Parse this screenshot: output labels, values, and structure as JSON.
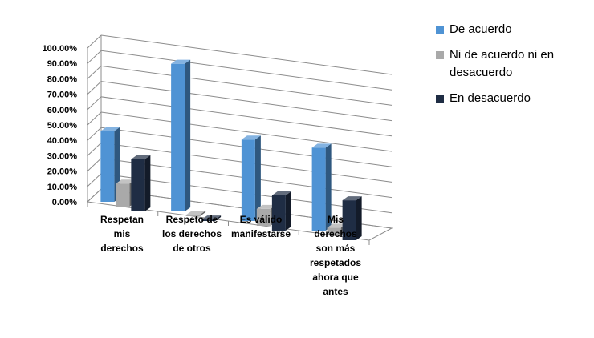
{
  "chart_data": {
    "type": "bar",
    "categories": [
      [
        "Respetan",
        "mis",
        "derechos"
      ],
      [
        "Respeto de",
        "los derechos",
        "de otros"
      ],
      [
        "Es válido",
        "manifestarse"
      ],
      [
        "Mis",
        "derechos",
        "son más",
        "respetados",
        "ahora que",
        "antes"
      ]
    ],
    "series": [
      {
        "name": "De acuerdo",
        "color": "#4f93d4",
        "values": [
          46,
          96,
          53,
          54
        ]
      },
      {
        "name": "Ni de acuerdo ni en desacuerdo",
        "color": "#a9a9a9",
        "values": [
          15,
          1,
          11,
          5
        ]
      },
      {
        "name": "En desacuerdo",
        "color": "#1f2d44",
        "values": [
          34,
          1,
          23,
          26
        ]
      }
    ],
    "yticks": [
      "0.00%",
      "10.00%",
      "20.00%",
      "30.00%",
      "40.00%",
      "50.00%",
      "60.00%",
      "70.00%",
      "80.00%",
      "90.00%",
      "100.00%"
    ],
    "ylim": [
      0,
      100
    ],
    "grid": true,
    "legend_position": "right",
    "style": "3d-clustered-column"
  }
}
